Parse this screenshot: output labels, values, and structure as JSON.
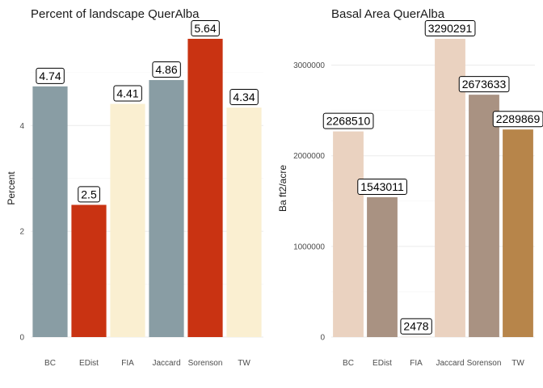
{
  "chart_data": [
    {
      "type": "bar",
      "title": "Percent of landscape  QuerAlba",
      "xlabel": "",
      "ylabel": "Percent",
      "categories": [
        "BC",
        "EDist",
        "FIA",
        "Jaccard",
        "Sorenson",
        "TW"
      ],
      "values": [
        4.74,
        2.5,
        4.41,
        4.86,
        5.64,
        4.34
      ],
      "value_labels": [
        "4.74",
        "2.5",
        "4.41",
        "4.86",
        "5.64",
        "4.34"
      ],
      "colors": [
        "#899da4",
        "#c93312",
        "#faefd1",
        "#899da4",
        "#c93312",
        "#faefd1"
      ],
      "yticks": [
        0,
        2,
        4
      ],
      "ytick_labels": [
        "0",
        "2",
        "4"
      ],
      "ylim": [
        0,
        5.64
      ],
      "grid": true
    },
    {
      "type": "bar",
      "title": "Basal Area  QuerAlba",
      "xlabel": "",
      "ylabel": "Ba ft2/acre",
      "categories": [
        "BC",
        "EDist",
        "FIA",
        "Jaccard",
        "Sorenson",
        "TW"
      ],
      "values": [
        2268510,
        1543011,
        2478,
        3290291,
        2673633,
        2289869
      ],
      "value_labels": [
        "2268510",
        "1543011",
        "2478",
        "3290291",
        "2673633",
        "2289869"
      ],
      "colors": [
        "#ead2c0",
        "#a99282",
        "#ead2c0",
        "#ead2c0",
        "#a99282",
        "#b7854a"
      ],
      "yticks": [
        0,
        1000000,
        2000000,
        3000000
      ],
      "ytick_labels": [
        "0",
        "1000000",
        "2000000",
        "3000000"
      ],
      "ylim": [
        0,
        3290291
      ],
      "grid": true
    }
  ]
}
